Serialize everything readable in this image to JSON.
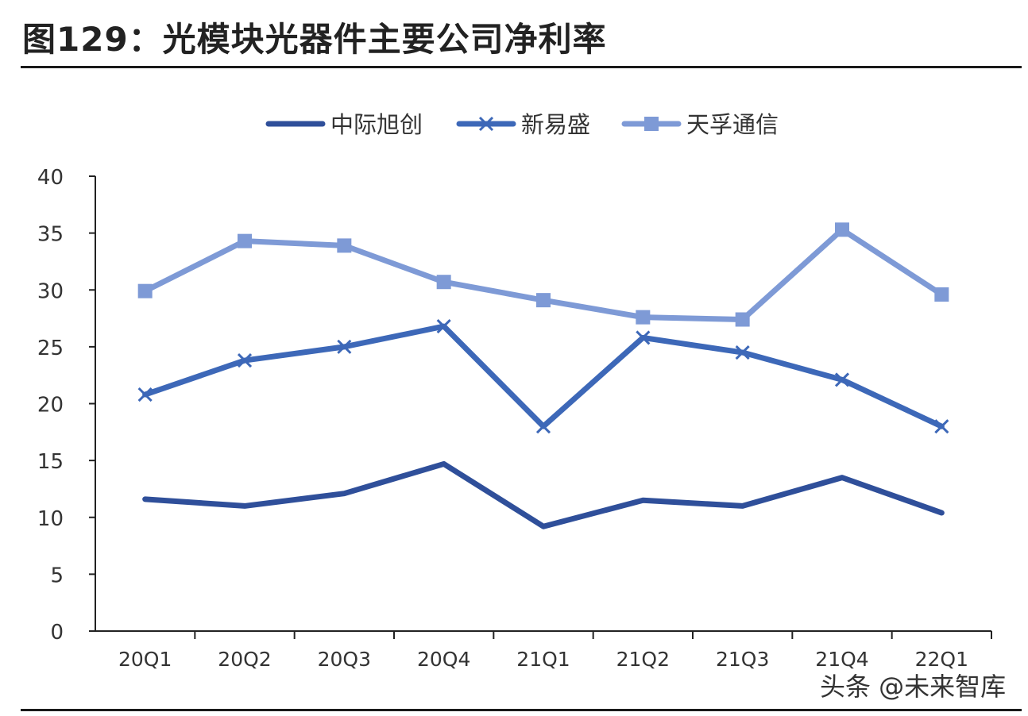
{
  "title": "图129：光模块光器件主要公司净利率",
  "watermark": "头条 @未来智库",
  "chart_data": {
    "type": "line",
    "title": "",
    "xlabel": "",
    "ylabel": "",
    "categories": [
      "20Q1",
      "20Q2",
      "20Q3",
      "20Q4",
      "21Q1",
      "21Q2",
      "21Q3",
      "21Q4",
      "22Q1"
    ],
    "ylim": [
      0,
      40
    ],
    "yticks": [
      0,
      5,
      10,
      15,
      20,
      25,
      30,
      35,
      40
    ],
    "grid": false,
    "legend_position": "top",
    "series": [
      {
        "name": "中际旭创",
        "marker": "none",
        "color": "#2f4f9a",
        "values": [
          11.6,
          11.0,
          12.1,
          14.7,
          9.2,
          11.5,
          11.0,
          13.5,
          10.4
        ]
      },
      {
        "name": "新易盛",
        "marker": "x",
        "color": "#3d68b8",
        "values": [
          20.8,
          23.8,
          25.0,
          26.8,
          18.0,
          25.8,
          24.5,
          22.1,
          18.0
        ]
      },
      {
        "name": "天孚通信",
        "marker": "square",
        "color": "#7e9ad6",
        "values": [
          29.9,
          34.3,
          33.9,
          30.7,
          29.1,
          27.6,
          27.4,
          35.3,
          29.6
        ]
      }
    ]
  }
}
